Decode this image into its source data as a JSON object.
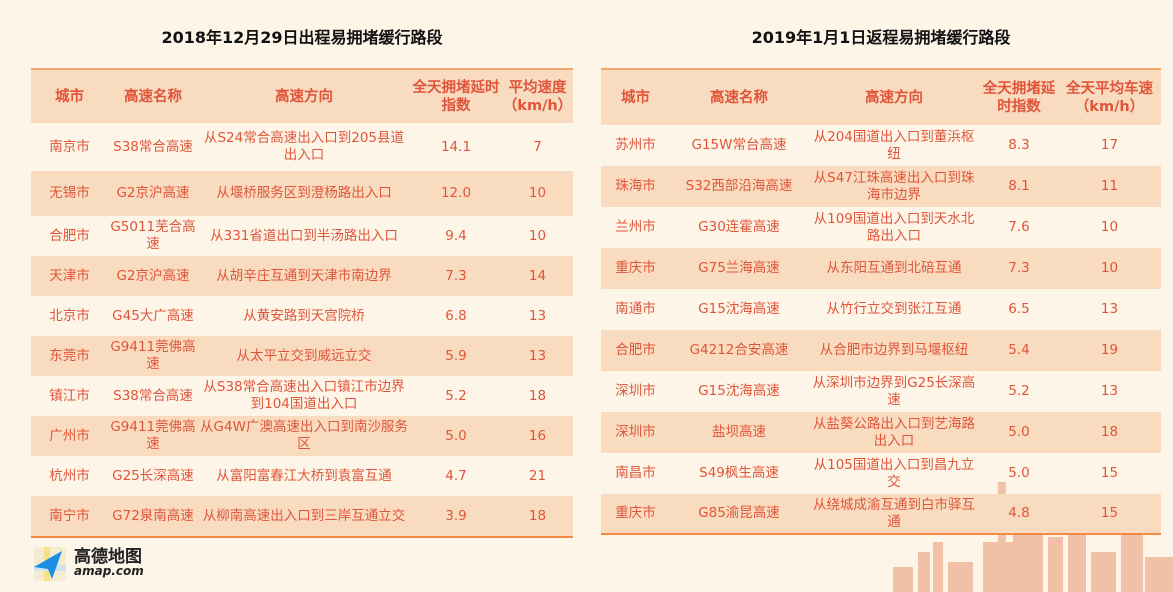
{
  "left": {
    "title": "2018年12月29日出程易拥堵缓行路段",
    "headers": [
      "城市",
      "高速名称",
      "高速方向",
      "全天拥堵延时指数",
      "平均速度（km/h）"
    ],
    "rows": [
      [
        "南京市",
        "S38常合高速",
        "从S24常合高速出入口到205县道出入口",
        "14.1",
        "7"
      ],
      [
        "无锡市",
        "G2京沪高速",
        "从堰桥服务区到澄杨路出入口",
        "12.0",
        "10"
      ],
      [
        "合肥市",
        "G5011芜合高速",
        "从331省道出口到半汤路出入口",
        "9.4",
        "10"
      ],
      [
        "天津市",
        "G2京沪高速",
        "从胡辛庄互通到天津市南边界",
        "7.3",
        "14"
      ],
      [
        "北京市",
        "G45大广高速",
        "从黄安路到天宫院桥",
        "6.8",
        "13"
      ],
      [
        "东莞市",
        "G9411莞佛高速",
        "从太平立交到威远立交",
        "5.9",
        "13"
      ],
      [
        "镇江市",
        "S38常合高速",
        "从S38常合高速出入口镇江市边界到104国道出入口",
        "5.2",
        "18"
      ],
      [
        "广州市",
        "G9411莞佛高速",
        "从G4W广澳高速出入口到南沙服务区",
        "5.0",
        "16"
      ],
      [
        "杭州市",
        "G25长深高速",
        "从富阳富春江大桥到袁富互通",
        "4.7",
        "21"
      ],
      [
        "南宁市",
        "G72泉南高速",
        "从柳南高速出入口到三岸互通立交",
        "3.9",
        "18"
      ]
    ]
  },
  "right": {
    "title": "2019年1月1日返程易拥堵缓行路段",
    "headers": [
      "城市",
      "高速名称",
      "高速方向",
      "全天拥堵延时指数",
      "全天平均车速（km/h）"
    ],
    "rows": [
      [
        "苏州市",
        "G15W常台高速",
        "从204国道出入口到董浜枢纽",
        "8.3",
        "17"
      ],
      [
        "珠海市",
        "S32西部沿海高速",
        "从S47江珠高速出入口到珠海市边界",
        "8.1",
        "11"
      ],
      [
        "兰州市",
        "G30连霍高速",
        "从109国道出入口到天水北路出入口",
        "7.6",
        "10"
      ],
      [
        "重庆市",
        "G75兰海高速",
        "从东阳互通到北碚互通",
        "7.3",
        "10"
      ],
      [
        "南通市",
        "G15沈海高速",
        "从竹行立交到张江互通",
        "6.5",
        "13"
      ],
      [
        "合肥市",
        "G4212合安高速",
        "从合肥市边界到马堰枢纽",
        "5.4",
        "19"
      ],
      [
        "深圳市",
        "G15沈海高速",
        "从深圳市边界到G25长深高速",
        "5.2",
        "13"
      ],
      [
        "深圳市",
        "盐坝高速",
        "从盐葵公路出入口到艺海路出入口",
        "5.0",
        "18"
      ],
      [
        "南昌市",
        "S49枫生高速",
        "从105国道出入口到昌九立交",
        "5.0",
        "15"
      ],
      [
        "重庆市",
        "G85渝昆高速",
        "从绕城成渝互通到白市驿互通",
        "4.8",
        "15"
      ]
    ]
  },
  "logo": {
    "cn": "高德地图",
    "en": "amap.com"
  },
  "colors": {
    "text": "#e0553a",
    "header_bg": "#f9dcc0",
    "background": "#fdf6e8",
    "border": "#f08a45"
  }
}
